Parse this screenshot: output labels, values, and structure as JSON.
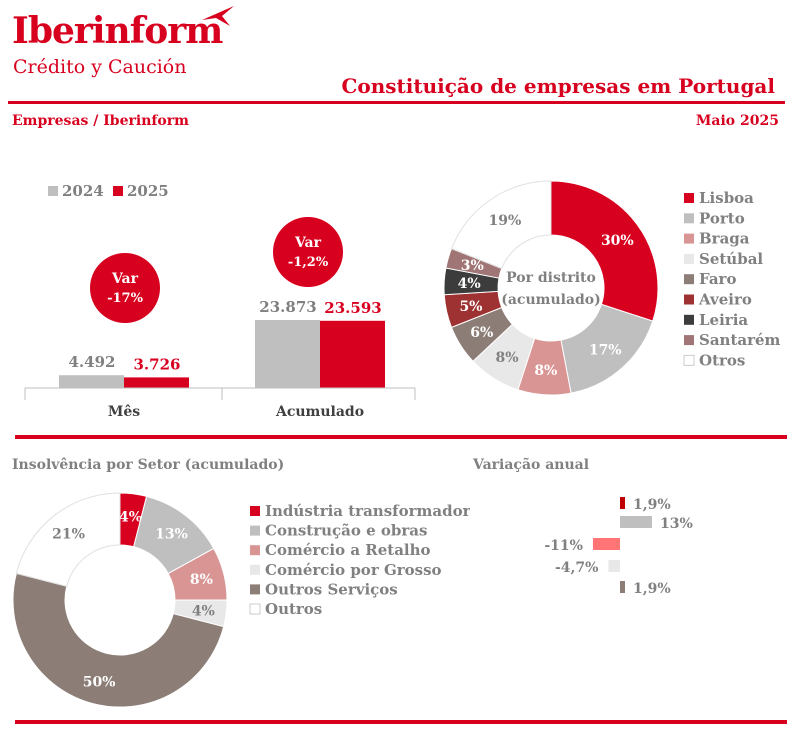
{
  "header": {
    "logo_name": "Iberinform",
    "logo_sub": "Crédito y Caución",
    "title": "Constituição de empresas em Portugal",
    "left_sub": "Empresas / Iberinform",
    "right_sub": "Maio 2025"
  },
  "colors": {
    "accent": "#d8001f",
    "y2024": "#bfbfbf",
    "y2025": "#d8001f"
  },
  "chart_data": [
    {
      "type": "bar",
      "title": "",
      "legend": [
        "2024",
        "2025"
      ],
      "categories": [
        "Mês",
        "Acumulado"
      ],
      "series": [
        {
          "name": "2024",
          "values": [
            4492,
            23873
          ],
          "labels": [
            "4.492",
            "23.873"
          ]
        },
        {
          "name": "2025",
          "values": [
            3726,
            23593
          ],
          "labels": [
            "3.726",
            "23.593"
          ]
        }
      ],
      "annotations": [
        {
          "title": "Var",
          "value": "-17%"
        },
        {
          "title": "Var",
          "value": "-1,2%"
        }
      ]
    },
    {
      "type": "pie",
      "title": "Por distrito (acumulado)",
      "slices": [
        {
          "label": "Lisboa",
          "value": 30,
          "color": "#d8001f",
          "text": "30%"
        },
        {
          "label": "Porto",
          "value": 17,
          "color": "#bfbfbf",
          "text": "17%"
        },
        {
          "label": "Braga",
          "value": 8,
          "color": "#d99594",
          "text": "8%"
        },
        {
          "label": "Setúbal",
          "value": 8,
          "color": "#e8e8e8",
          "text": "8%"
        },
        {
          "label": "Faro",
          "value": 6,
          "color": "#8c7d77",
          "text": "6%"
        },
        {
          "label": "Aveiro",
          "value": 5,
          "color": "#9e3232",
          "text": "5%"
        },
        {
          "label": "Leiria",
          "value": 4,
          "color": "#3c3c3c",
          "text": "4%"
        },
        {
          "label": "Santarém",
          "value": 3,
          "color": "#a07575",
          "text": "3%"
        },
        {
          "label": "Otros",
          "value": 19,
          "color": "#ffffff",
          "text": "19%"
        }
      ]
    },
    {
      "type": "pie",
      "title": "Insolvência por Setor (acumulado)",
      "slices": [
        {
          "label": "Indústria transformadora",
          "value": 4,
          "color": "#d8001f",
          "text": "4%"
        },
        {
          "label": "Construção e obras",
          "value": 13,
          "color": "#bfbfbf",
          "text": "13%"
        },
        {
          "label": "Comércio a Retalho",
          "value": 8,
          "color": "#d99594",
          "text": "8%"
        },
        {
          "label": "Comércio por Grosso",
          "value": 4,
          "color": "#e8e8e8",
          "text": "4%"
        },
        {
          "label": "Outros Serviços",
          "value": 50,
          "color": "#8c7d77",
          "text": "50%"
        },
        {
          "label": "Outros",
          "value": 21,
          "color": "#ffffff",
          "text": "21%"
        }
      ]
    },
    {
      "type": "bar",
      "orientation": "horizontal",
      "title": "Variação anual",
      "values": [
        1.9,
        13,
        -11,
        -4.7,
        1.9
      ],
      "labels": [
        "1,9%",
        "13%",
        "-11%",
        "-4,7%",
        "1,9%"
      ],
      "colors": [
        "#c00000",
        "#bfbfbf",
        "#ff7575",
        "#e8e8e8",
        "#8c7d77"
      ]
    }
  ]
}
